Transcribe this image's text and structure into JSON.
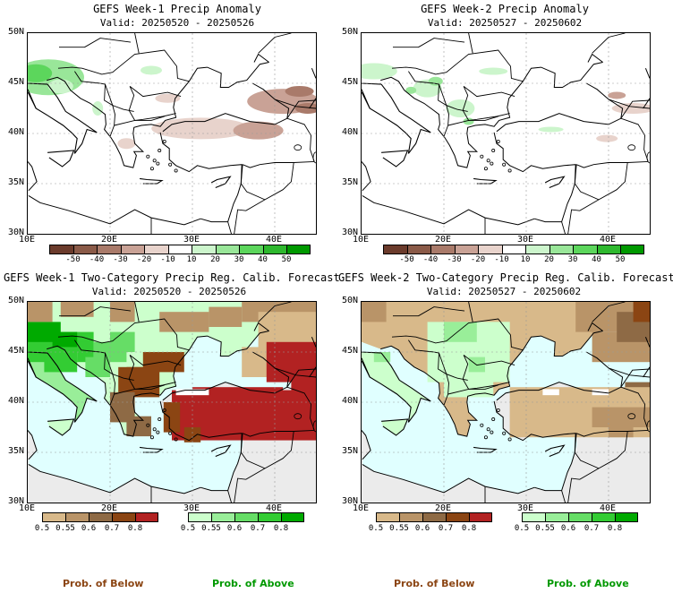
{
  "panels": [
    {
      "title": "GEFS Week-1 Precip Anomaly",
      "valid": "Valid: 20250520 - 20250526",
      "type": "anomaly"
    },
    {
      "title": "GEFS Week-2 Precip Anomaly",
      "valid": "Valid: 20250527 - 20250602",
      "type": "anomaly"
    },
    {
      "title": "GEFS Week-1 Two-Category Precip Reg. Calib. Forecast",
      "valid": "Valid: 20250520 - 20250526",
      "type": "prob"
    },
    {
      "title": "GEFS Week-2 Two-Category Precip Reg. Calib. Forecast",
      "valid": "Valid: 20250527 - 20250602",
      "type": "prob"
    }
  ],
  "lat_labels": [
    "50N",
    "45N",
    "40N",
    "35N",
    "30N"
  ],
  "lon_labels": [
    "10E",
    "20E",
    "30E",
    "40E"
  ],
  "anomaly_ticks": [
    "-50",
    "-40",
    "-30",
    "-20",
    "-10",
    "10",
    "20",
    "30",
    "40",
    "50"
  ],
  "anomaly_colors": [
    "#6b3b2c",
    "#8a5a48",
    "#a97a6a",
    "#c9a296",
    "#e8d3cc",
    "#ffffff",
    "#ccf5cc",
    "#99e699",
    "#5cd65c",
    "#2eb82e",
    "#009900"
  ],
  "prob_below_ticks": [
    "0.5",
    "0.55",
    "0.6",
    "0.7",
    "0.8"
  ],
  "prob_above_ticks": [
    "0.5",
    "0.55",
    "0.6",
    "0.7",
    "0.8"
  ],
  "prob_below_colors": [
    "#d8b98a",
    "#b99468",
    "#8e6a45",
    "#8b4513",
    "#b22222"
  ],
  "prob_above_colors": [
    "#ccffcc",
    "#99ee99",
    "#66dd66",
    "#33cc33",
    "#00aa00"
  ],
  "colors": {
    "sea": "#e0ffff",
    "land_na": "#ebebeb",
    "below_label": "#8b4513",
    "above_label": "#009900"
  },
  "footer": {
    "below": "Prob. of Below",
    "above": "Prob. of Above"
  }
}
